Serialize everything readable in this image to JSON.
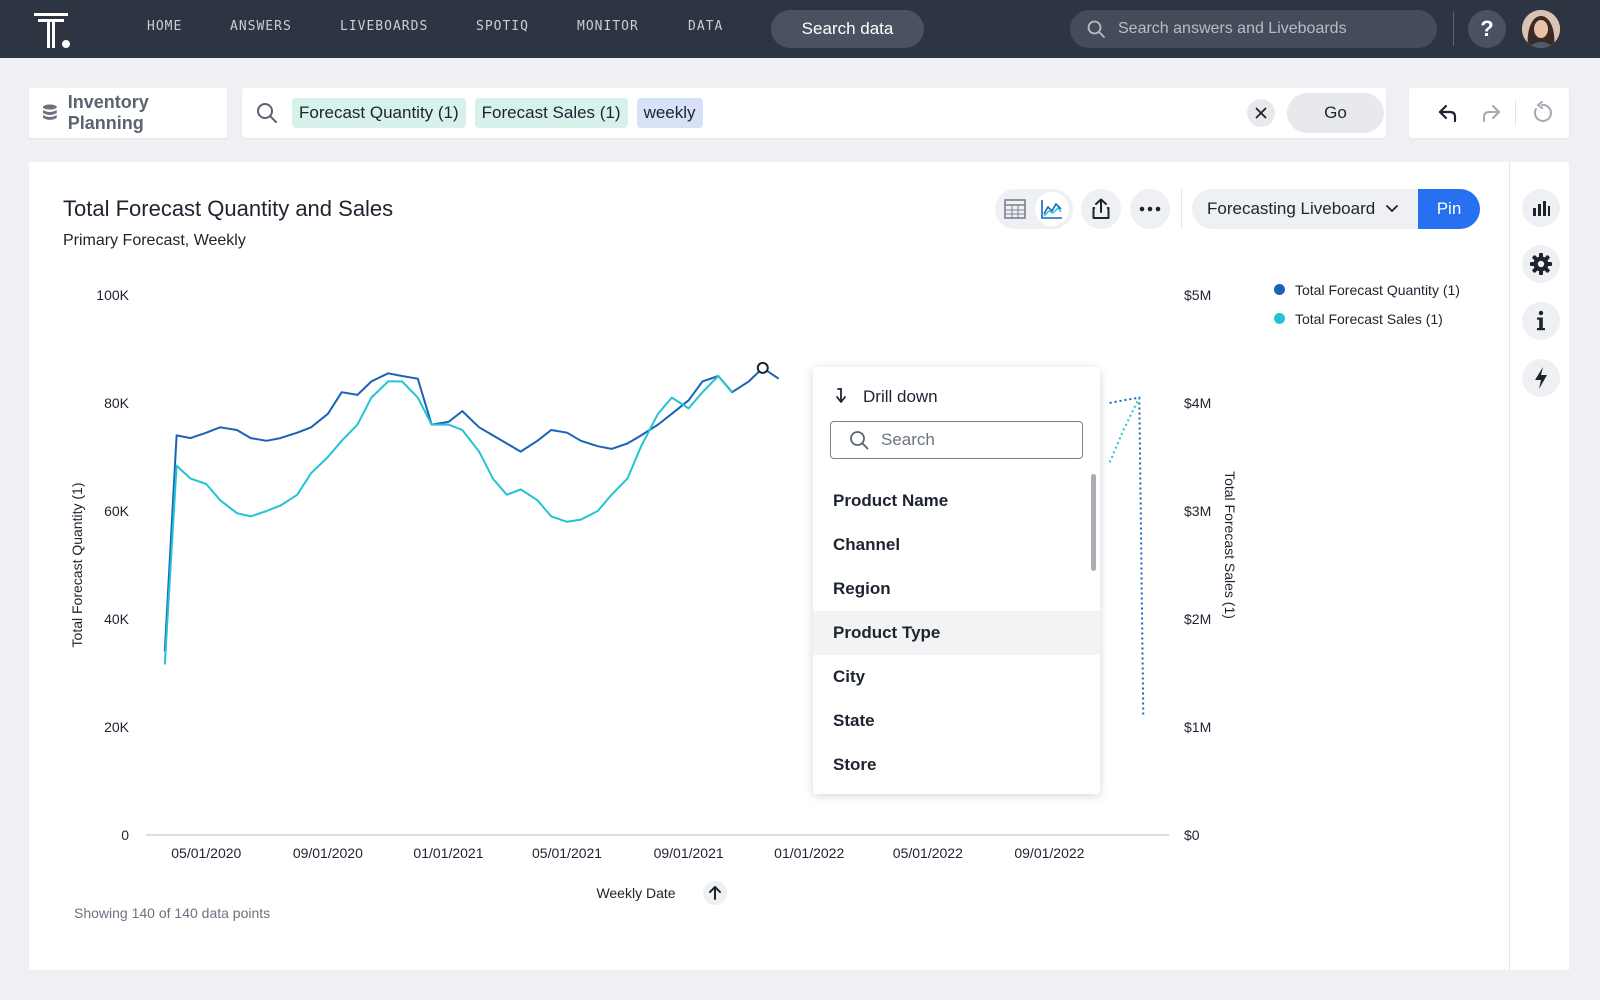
{
  "nav": {
    "items": [
      {
        "label": "HOME"
      },
      {
        "label": "ANSWERS"
      },
      {
        "label": "LIVEBOARDS"
      },
      {
        "label": "SPOTIQ"
      },
      {
        "label": "MONITOR"
      },
      {
        "label": "DATA"
      }
    ],
    "search_data_label": "Search data",
    "global_search_placeholder": "Search answers and Liveboards",
    "help_label": "?"
  },
  "search": {
    "source": "Inventory Planning",
    "tokens": [
      {
        "text": "Forecast Quantity (1)",
        "kind": "measure"
      },
      {
        "text": "Forecast Sales (1)",
        "kind": "measure"
      },
      {
        "text": "weekly",
        "kind": "keyword"
      }
    ],
    "go_label": "Go"
  },
  "answer": {
    "title": "Total Forecast Quantity and Sales",
    "subtitle": "Primary Forecast, Weekly",
    "liveboard": "Forecasting Liveboard",
    "pin_label": "Pin",
    "data_points_text": "Showing 140 of 140 data points"
  },
  "colors": {
    "series_quantity": "#1b62b8",
    "series_sales": "#22c4d4",
    "accent": "#2770ef",
    "nav_bg": "#2e3542"
  },
  "drill": {
    "header": "Drill down",
    "search_placeholder": "Search",
    "items": [
      {
        "label": "Product Name"
      },
      {
        "label": "Channel"
      },
      {
        "label": "Region"
      },
      {
        "label": "Product Type"
      },
      {
        "label": "City"
      },
      {
        "label": "State"
      },
      {
        "label": "Store"
      }
    ],
    "hovered_item": "Product Type"
  },
  "chart_data": {
    "type": "line",
    "title": "Total Forecast Quantity and Sales",
    "subtitle": "Primary Forecast, Weekly",
    "xlabel": "Weekly Date",
    "ylabel": "Total Forecast Quantity (1)",
    "y2label": "Total Forecast Sales (1)",
    "x_ticks": [
      "05/01/2020",
      "09/01/2020",
      "01/01/2021",
      "05/01/2021",
      "09/01/2021",
      "01/01/2022",
      "05/01/2022",
      "09/01/2022"
    ],
    "y_ticks": [
      "0",
      "20K",
      "40K",
      "60K",
      "80K",
      "100K"
    ],
    "y2_ticks": [
      "$0",
      "$1M",
      "$2M",
      "$3M",
      "$4M",
      "$5M"
    ],
    "ylim": [
      0,
      100000
    ],
    "y2lim": [
      0,
      5000000
    ],
    "legend_position": "top-right",
    "series": [
      {
        "name": "Total Forecast Quantity (1)",
        "axis": "left",
        "points": [
          [
            "2020-03-20",
            34000
          ],
          [
            "2020-04-01",
            74000
          ],
          [
            "2020-04-15",
            73500
          ],
          [
            "2020-05-01",
            74500
          ],
          [
            "2020-05-15",
            75500
          ],
          [
            "2020-06-01",
            75000
          ],
          [
            "2020-06-15",
            73500
          ],
          [
            "2020-07-01",
            73000
          ],
          [
            "2020-07-15",
            73500
          ],
          [
            "2020-08-01",
            74500
          ],
          [
            "2020-08-15",
            75500
          ],
          [
            "2020-09-01",
            78000
          ],
          [
            "2020-09-15",
            82000
          ],
          [
            "2020-10-01",
            81500
          ],
          [
            "2020-10-15",
            84000
          ],
          [
            "2020-11-01",
            85500
          ],
          [
            "2020-11-15",
            85000
          ],
          [
            "2020-12-01",
            84500
          ],
          [
            "2020-12-15",
            76000
          ],
          [
            "2021-01-01",
            76500
          ],
          [
            "2021-01-15",
            78500
          ],
          [
            "2021-02-01",
            75500
          ],
          [
            "2021-02-15",
            74000
          ],
          [
            "2021-03-01",
            72500
          ],
          [
            "2021-03-15",
            71000
          ],
          [
            "2021-04-01",
            73000
          ],
          [
            "2021-04-15",
            75000
          ],
          [
            "2021-05-01",
            74500
          ],
          [
            "2021-05-15",
            73000
          ],
          [
            "2021-06-01",
            72000
          ],
          [
            "2021-06-15",
            71500
          ],
          [
            "2021-07-01",
            72500
          ],
          [
            "2021-07-15",
            74000
          ],
          [
            "2021-08-01",
            76000
          ],
          [
            "2021-08-15",
            78000
          ],
          [
            "2021-09-01",
            80500
          ],
          [
            "2021-09-15",
            84000
          ],
          [
            "2021-10-01",
            85000
          ],
          [
            "2021-10-15",
            82000
          ],
          [
            "2021-11-01",
            84000
          ],
          [
            "2021-11-15",
            86500
          ],
          [
            "2021-12-01",
            84500
          ]
        ]
      },
      {
        "name": "Total Forecast Sales (1)",
        "axis": "right",
        "points": [
          [
            "2020-03-20",
            1580000
          ],
          [
            "2020-04-01",
            3420000
          ],
          [
            "2020-04-15",
            3300000
          ],
          [
            "2020-05-01",
            3250000
          ],
          [
            "2020-05-15",
            3100000
          ],
          [
            "2020-06-01",
            2980000
          ],
          [
            "2020-06-15",
            2950000
          ],
          [
            "2020-07-01",
            3000000
          ],
          [
            "2020-07-15",
            3050000
          ],
          [
            "2020-08-01",
            3150000
          ],
          [
            "2020-08-15",
            3350000
          ],
          [
            "2020-09-01",
            3500000
          ],
          [
            "2020-09-15",
            3650000
          ],
          [
            "2020-10-01",
            3800000
          ],
          [
            "2020-10-15",
            4050000
          ],
          [
            "2020-11-01",
            4200000
          ],
          [
            "2020-11-15",
            4200000
          ],
          [
            "2020-12-01",
            4050000
          ],
          [
            "2020-12-15",
            3800000
          ],
          [
            "2021-01-01",
            3800000
          ],
          [
            "2021-01-15",
            3750000
          ],
          [
            "2021-02-01",
            3550000
          ],
          [
            "2021-02-15",
            3300000
          ],
          [
            "2021-03-01",
            3150000
          ],
          [
            "2021-03-15",
            3200000
          ],
          [
            "2021-04-01",
            3100000
          ],
          [
            "2021-04-15",
            2950000
          ],
          [
            "2021-05-01",
            2900000
          ],
          [
            "2021-05-15",
            2920000
          ],
          [
            "2021-06-01",
            3000000
          ],
          [
            "2021-06-15",
            3150000
          ],
          [
            "2021-07-01",
            3300000
          ],
          [
            "2021-07-15",
            3600000
          ],
          [
            "2021-08-01",
            3900000
          ],
          [
            "2021-08-15",
            4050000
          ],
          [
            "2021-09-01",
            3950000
          ],
          [
            "2021-09-15",
            4100000
          ],
          [
            "2021-10-01",
            4250000
          ],
          [
            "2021-10-15",
            4100000
          ]
        ]
      }
    ],
    "projected_series": [
      {
        "name": "Total Forecast Quantity (1)",
        "axis": "left",
        "style": "dotted",
        "points": [
          [
            "2022-11-01",
            80000
          ],
          [
            "2022-11-15",
            80500
          ],
          [
            "2022-12-01",
            81000
          ],
          [
            "2022-12-05",
            22000
          ]
        ]
      },
      {
        "name": "Total Forecast Sales (1)",
        "axis": "right",
        "style": "dotted",
        "points": [
          [
            "2022-11-01",
            3450000
          ],
          [
            "2022-11-15",
            3750000
          ],
          [
            "2022-12-01",
            4050000
          ]
        ]
      }
    ],
    "selected_point": {
      "date": "2021-11-15",
      "series": "Total Forecast Quantity (1)"
    }
  }
}
